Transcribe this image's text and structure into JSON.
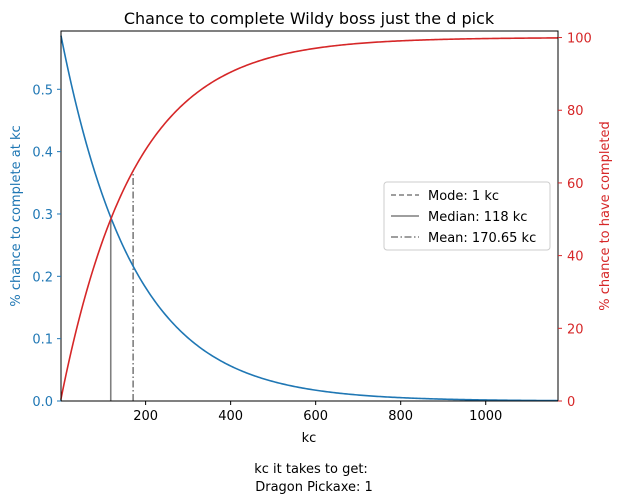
{
  "chart_data": {
    "type": "line",
    "title": "Chance to complete Wildy boss just the d pick",
    "xlabel": "kc",
    "ylabel_left": "% chance to complete at kc",
    "ylabel_right": "% chance to have completed",
    "footnote_line1": "kc it takes to get:",
    "footnote_line2": "Dragon Pickaxe: 1",
    "xlim": [
      1,
      1170
    ],
    "ylim_left": [
      0,
      0.5935
    ],
    "ylim_right": [
      0,
      101.8
    ],
    "x_ticks": [
      200,
      400,
      600,
      800,
      1000
    ],
    "x_tick_labels": [
      "200",
      "400",
      "600",
      "800",
      "1000"
    ],
    "y_left_ticks": [
      0.0,
      0.1,
      0.2,
      0.3,
      0.4,
      0.5
    ],
    "y_left_tick_labels": [
      "0.0",
      "0.1",
      "0.2",
      "0.3",
      "0.4",
      "0.5"
    ],
    "y_right_ticks": [
      0,
      20,
      40,
      60,
      80,
      100
    ],
    "y_right_tick_labels": [
      "0",
      "20",
      "40",
      "60",
      "80",
      "100"
    ],
    "drop_rate_denominator": 170.65,
    "colors": {
      "left_axis": "#1f77b4",
      "right_axis": "#d62728",
      "markers": "#7f7f7f"
    },
    "series": [
      {
        "axis": "left",
        "color": "#1f77b4",
        "x": [
          1,
          50,
          100,
          118,
          150,
          170.65,
          200,
          250,
          300,
          400,
          500,
          600,
          700,
          800,
          900,
          1000,
          1100,
          1170
        ],
        "y": [
          0.586,
          0.4505,
          0.3254,
          0.2964,
          0.2418,
          0.2154,
          0.1823,
          0.1355,
          0.1007,
          0.0557,
          0.0307,
          0.017,
          0.0094,
          0.0052,
          0.0029,
          0.0016,
          0.0009,
          0.0006
        ]
      },
      {
        "axis": "right",
        "color": "#d62728",
        "x": [
          1,
          50,
          100,
          118,
          150,
          170.65,
          200,
          250,
          300,
          400,
          500,
          600,
          700,
          800,
          900,
          1000,
          1100,
          1170
        ],
        "y": [
          0.59,
          25.4,
          44.3,
          50.0,
          58.6,
          63.2,
          69.0,
          76.9,
          82.8,
          90.5,
          94.8,
          97.1,
          98.4,
          99.1,
          99.5,
          99.7,
          99.85,
          99.9
        ]
      }
    ],
    "legend": {
      "position": "center-right",
      "entries": [
        {
          "label": "Mode: 1 kc",
          "style": "dashed",
          "x": 1
        },
        {
          "label": "Median: 118 kc",
          "style": "solid",
          "x": 118
        },
        {
          "label": "Mean: 170.65 kc",
          "style": "dashdot",
          "x": 170.65
        }
      ]
    },
    "grid": false
  }
}
